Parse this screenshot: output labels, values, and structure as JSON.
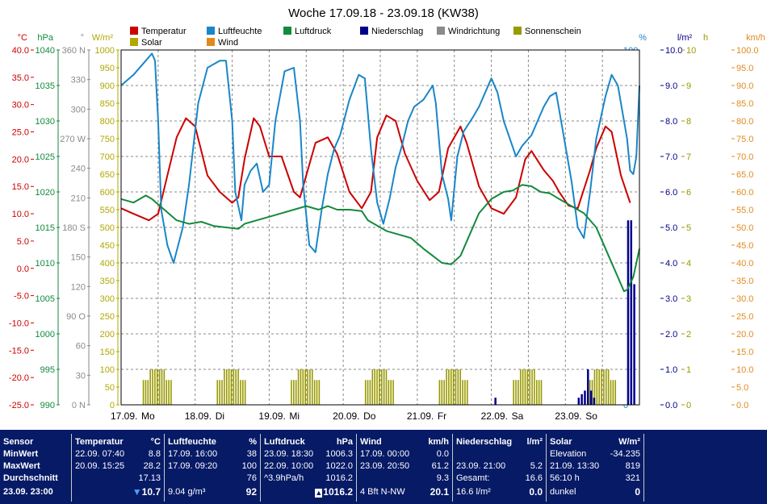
{
  "window": {
    "title": "Woche 17.09.18 - 23.09.18 (KW38)"
  },
  "legend": [
    {
      "label": "Temperatur",
      "color": "#cc0000"
    },
    {
      "label": "Luftfeuchte",
      "color": "#1a86c8"
    },
    {
      "label": "Luftdruck",
      "color": "#138a3c"
    },
    {
      "label": "Niederschlag",
      "color": "#00008b"
    },
    {
      "label": "Windrichtung",
      "color": "#8a8a8a"
    },
    {
      "label": "Sonnenschein",
      "color": "#999900"
    },
    {
      "label": "Solar",
      "color": "#b0a800"
    },
    {
      "label": "Wind",
      "color": "#e08a1e"
    }
  ],
  "chart_data": {
    "type": "line",
    "title": "Woche 17.09.18 - 23.09.18 (KW38)",
    "x_labels": [
      {
        "day": "17.09.",
        "wd": "Mo"
      },
      {
        "day": "18.09.",
        "wd": "Di"
      },
      {
        "day": "19.09.",
        "wd": "Mi"
      },
      {
        "day": "20.09.",
        "wd": "Do"
      },
      {
        "day": "21.09.",
        "wd": "Fr"
      },
      {
        "day": "22.09.",
        "wd": "Sa"
      },
      {
        "day": "23.09.",
        "wd": "So"
      }
    ],
    "x_range_hours": [
      0,
      168
    ],
    "axes": [
      {
        "unit": "°C",
        "color": "#cc0000",
        "min": -25,
        "max": 40,
        "ticks": [
          "40.0",
          "35.0",
          "30.0",
          "25.0",
          "20.0",
          "15.0",
          "10.0",
          "5.0",
          "0.0",
          "-5.0",
          "-10.0",
          "-15.0",
          "-20.0",
          "-25.0"
        ]
      },
      {
        "unit": "hPa",
        "color": "#138a3c",
        "min": 990,
        "max": 1040,
        "ticks": [
          "1040",
          "1035",
          "1030",
          "1025",
          "1020",
          "1015",
          "1010",
          "1005",
          "1000",
          "995",
          "990"
        ]
      },
      {
        "unit": "°",
        "color": "#8a8a8a",
        "min": 0,
        "max": 360,
        "ticks": [
          "360 N",
          "330",
          "300",
          "270 W",
          "240",
          "210",
          "180 S",
          "150",
          "120",
          "90 O",
          "60",
          "30",
          "0 N"
        ]
      },
      {
        "unit": "W/m²",
        "color": "#b0a800",
        "min": 0,
        "max": 1000,
        "ticks": [
          "1000",
          "950",
          "900",
          "850",
          "800",
          "750",
          "700",
          "650",
          "600",
          "550",
          "500",
          "450",
          "400",
          "350",
          "300",
          "250",
          "200",
          "150",
          "100",
          "50",
          "0"
        ]
      },
      {
        "unit": "%",
        "color": "#1a86c8",
        "min": 0,
        "max": 100,
        "ticks": [
          "100",
          "90",
          "80",
          "70",
          "60",
          "50",
          "40",
          "30",
          "20",
          "10",
          "0"
        ]
      },
      {
        "unit": "l/m²",
        "color": "#00008b",
        "min": 0,
        "max": 10,
        "ticks": [
          "10.0",
          "9.0",
          "8.0",
          "7.0",
          "6.0",
          "5.0",
          "4.0",
          "3.0",
          "2.0",
          "1.0",
          "0.0"
        ]
      },
      {
        "unit": "h",
        "color": "#999900",
        "min": 0,
        "max": 10,
        "ticks": [
          "10",
          "9",
          "8",
          "7",
          "6",
          "5",
          "4",
          "3",
          "2",
          "1",
          "0"
        ]
      },
      {
        "unit": "km/h",
        "color": "#e08a1e",
        "min": 0,
        "max": 100,
        "ticks": [
          "100.0",
          "95.0",
          "90.0",
          "85.0",
          "80.0",
          "75.0",
          "70.0",
          "65.0",
          "60.0",
          "55.0",
          "50.0",
          "45.0",
          "40.0",
          "35.0",
          "30.0",
          "25.0",
          "20.0",
          "15.0",
          "10.0",
          "5.0",
          "0.0"
        ]
      }
    ],
    "series": [
      {
        "name": "Temperatur",
        "axis": 0,
        "color": "#cc0000",
        "points": [
          [
            0,
            11
          ],
          [
            4,
            10
          ],
          [
            9,
            8.8
          ],
          [
            12,
            10
          ],
          [
            15,
            17
          ],
          [
            18,
            24
          ],
          [
            21,
            27.5
          ],
          [
            24,
            26
          ],
          [
            28,
            17
          ],
          [
            32,
            14
          ],
          [
            36,
            12
          ],
          [
            38,
            13
          ],
          [
            40,
            20
          ],
          [
            43,
            27.5
          ],
          [
            45,
            26
          ],
          [
            48,
            20.5
          ],
          [
            52,
            20.5
          ],
          [
            56,
            14
          ],
          [
            58,
            13
          ],
          [
            61,
            19
          ],
          [
            63,
            23
          ],
          [
            67,
            24
          ],
          [
            70,
            21
          ],
          [
            74,
            14
          ],
          [
            78,
            11
          ],
          [
            81,
            14
          ],
          [
            83,
            24
          ],
          [
            86,
            28
          ],
          [
            89,
            27
          ],
          [
            92,
            21
          ],
          [
            96,
            16
          ],
          [
            100,
            12.5
          ],
          [
            103,
            14
          ],
          [
            106,
            22
          ],
          [
            110,
            26
          ],
          [
            112,
            23
          ],
          [
            116,
            15
          ],
          [
            120,
            11
          ],
          [
            124,
            10
          ],
          [
            128,
            13
          ],
          [
            131,
            20
          ],
          [
            133,
            21.5
          ],
          [
            137,
            18
          ],
          [
            140,
            16
          ],
          [
            142,
            14
          ],
          [
            145,
            11.5
          ],
          [
            148,
            11
          ],
          [
            152,
            18
          ],
          [
            154,
            22
          ],
          [
            157,
            26
          ],
          [
            159,
            25
          ],
          [
            162,
            17
          ],
          [
            165,
            12
          ]
        ]
      },
      {
        "name": "Luftfeuchte",
        "axis": 4,
        "color": "#1a86c8",
        "points": [
          [
            0,
            90
          ],
          [
            4,
            93
          ],
          [
            8,
            97
          ],
          [
            10,
            99
          ],
          [
            11,
            97
          ],
          [
            12,
            80
          ],
          [
            13,
            55
          ],
          [
            15,
            45
          ],
          [
            17,
            40
          ],
          [
            20,
            50
          ],
          [
            22,
            62
          ],
          [
            25,
            85
          ],
          [
            28,
            95
          ],
          [
            32,
            97
          ],
          [
            34,
            97
          ],
          [
            36,
            80
          ],
          [
            37,
            60
          ],
          [
            39,
            52
          ],
          [
            40,
            62
          ],
          [
            42,
            66
          ],
          [
            44,
            68
          ],
          [
            46,
            60
          ],
          [
            48,
            62
          ],
          [
            50,
            80
          ],
          [
            53,
            94
          ],
          [
            56,
            95
          ],
          [
            58,
            80
          ],
          [
            59,
            62
          ],
          [
            61,
            45
          ],
          [
            63,
            43
          ],
          [
            65,
            55
          ],
          [
            67,
            65
          ],
          [
            69,
            72
          ],
          [
            71,
            76
          ],
          [
            74,
            86
          ],
          [
            77,
            93
          ],
          [
            79,
            92
          ],
          [
            81,
            72
          ],
          [
            83,
            57
          ],
          [
            85,
            51
          ],
          [
            87,
            58
          ],
          [
            89,
            67
          ],
          [
            91,
            73
          ],
          [
            93,
            80
          ],
          [
            95,
            84
          ],
          [
            98,
            86
          ],
          [
            101,
            90
          ],
          [
            102,
            85
          ],
          [
            104,
            65
          ],
          [
            106,
            58
          ],
          [
            107,
            52
          ],
          [
            109,
            70
          ],
          [
            111,
            77
          ],
          [
            114,
            81
          ],
          [
            116,
            84
          ],
          [
            118,
            88
          ],
          [
            120,
            92
          ],
          [
            122,
            88
          ],
          [
            124,
            80
          ],
          [
            126,
            75
          ],
          [
            128,
            70
          ],
          [
            130,
            73
          ],
          [
            133,
            76
          ],
          [
            135,
            80
          ],
          [
            137,
            84
          ],
          [
            139,
            87
          ],
          [
            141,
            88
          ],
          [
            143,
            78
          ],
          [
            146,
            63
          ],
          [
            148,
            50
          ],
          [
            150,
            47
          ],
          [
            152,
            60
          ],
          [
            154,
            75
          ],
          [
            157,
            87
          ],
          [
            159,
            93
          ],
          [
            161,
            90
          ],
          [
            163,
            80
          ],
          [
            164,
            75
          ],
          [
            165,
            66
          ],
          [
            166,
            65
          ],
          [
            167,
            70
          ],
          [
            168,
            90
          ]
        ]
      },
      {
        "name": "Luftdruck",
        "axis": 1,
        "color": "#138a3c",
        "points": [
          [
            0,
            1019
          ],
          [
            4,
            1018.5
          ],
          [
            8,
            1019.5
          ],
          [
            10,
            1019
          ],
          [
            14,
            1017.5
          ],
          [
            18,
            1016
          ],
          [
            22,
            1015.5
          ],
          [
            26,
            1015.8
          ],
          [
            30,
            1015.2
          ],
          [
            34,
            1015
          ],
          [
            38,
            1014.8
          ],
          [
            40,
            1015.5
          ],
          [
            44,
            1016
          ],
          [
            48,
            1016.5
          ],
          [
            52,
            1017
          ],
          [
            56,
            1017.5
          ],
          [
            60,
            1018
          ],
          [
            64,
            1017.5
          ],
          [
            67,
            1018
          ],
          [
            70,
            1017.5
          ],
          [
            74,
            1017.5
          ],
          [
            78,
            1017.3
          ],
          [
            80,
            1016
          ],
          [
            84,
            1015
          ],
          [
            86,
            1014.5
          ],
          [
            90,
            1014
          ],
          [
            94,
            1013.5
          ],
          [
            98,
            1012
          ],
          [
            101,
            1011
          ],
          [
            104,
            1010
          ],
          [
            107,
            1009.8
          ],
          [
            110,
            1011
          ],
          [
            113,
            1014
          ],
          [
            116,
            1017
          ],
          [
            120,
            1019
          ],
          [
            124,
            1020
          ],
          [
            127,
            1020.2
          ],
          [
            130,
            1021
          ],
          [
            133,
            1020.8
          ],
          [
            136,
            1020
          ],
          [
            139,
            1019.8
          ],
          [
            142,
            1019
          ],
          [
            146,
            1018
          ],
          [
            150,
            1017
          ],
          [
            154,
            1015
          ],
          [
            158,
            1011
          ],
          [
            161,
            1008
          ],
          [
            163,
            1006
          ],
          [
            164,
            1006.2
          ],
          [
            166,
            1008
          ],
          [
            168,
            1012
          ]
        ]
      }
    ]
  },
  "panel": {
    "sensor": {
      "header": "Sensor",
      "min": "MinWert",
      "max": "MaxWert",
      "avg": "Durchschnitt",
      "now": "23.09. 23:00"
    },
    "temperatur": {
      "header": "Temperatur",
      "unit": "°C",
      "min_time": "22.09.  07:40",
      "min_val": "8.8",
      "max_time": "20.09.  15:25",
      "max_val": "28.2",
      "avg": "17.13",
      "now": "10.7"
    },
    "luftfeuchte": {
      "header": "Luftfeuchte",
      "unit": "%",
      "min_time": "17.09.  16:00",
      "min_val": "38",
      "max_time": "17.09.  09:20",
      "max_val": "100",
      "avg": "76",
      "abs": "9.04 g/m³",
      "now": "92"
    },
    "luftdruck": {
      "header": "Luftdruck",
      "unit": "hPa",
      "min_time": "23.09.  18:30",
      "min_val": "1006.3",
      "max_time": "22.09.  10:00",
      "max_val": "1022.0",
      "trend": "^3.9hPa/h",
      "avg": "1016.2",
      "now": "1016.2"
    },
    "wind": {
      "header": "Wind",
      "unit": "km/h",
      "min_time": "17.09.  00:00",
      "min_val": "0.0",
      "max_time": "23.09.  20:50",
      "max_val": "61.2",
      "avg": "9.3",
      "dir": "4 Bft N-NW",
      "now": "20.1"
    },
    "niederschlag": {
      "header": "Niederschlag",
      "unit": "l/m²",
      "max_time": "23.09.  21:00",
      "max_val": "5.2",
      "total_label": "Gesamt:",
      "total": "16.6",
      "sum": "16.6 l/m²",
      "now": "0.0"
    },
    "solar": {
      "header": "Solar",
      "unit": "W/m²",
      "elev_label": "Elevation",
      "elev": "-34.235",
      "max_time": "21.09.  13:30",
      "max_val": "819",
      "sun_h": "56:10 h",
      "sun_val": "321",
      "dark": "dunkel",
      "now": "0"
    }
  }
}
